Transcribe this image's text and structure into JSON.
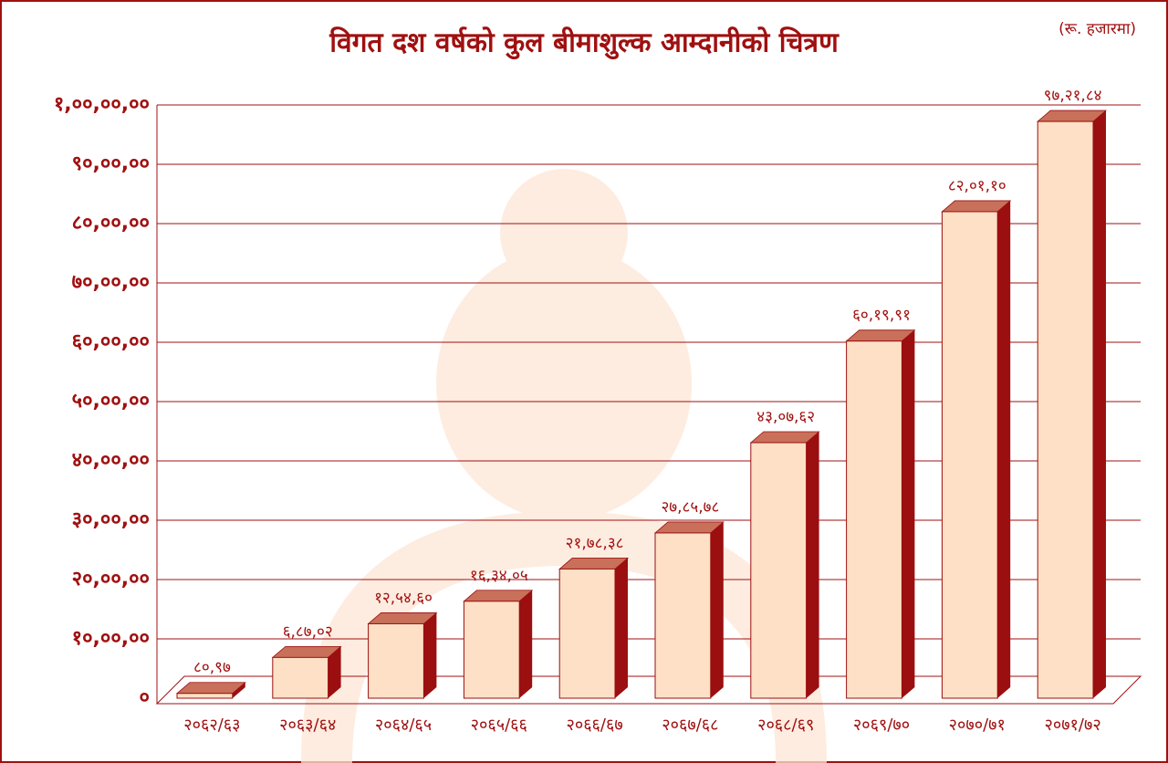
{
  "chart_data": {
    "type": "bar3d",
    "title": "विगत दश वर्षको कुल बीमाशुल्क आम्दानीको चित्रण",
    "subtitle": "(रू. हजारमा)",
    "categories": [
      "२०६२/६३",
      "२०६३/६४",
      "२०६४/६५",
      "२०६५/६६",
      "२०६६/६७",
      "२०६७/६८",
      "२०६८/६९",
      "२०६९/७०",
      "२०७०/७१",
      "२०७१/७२"
    ],
    "values": [
      8097,
      68702,
      125460,
      163405,
      217838,
      278578,
      430762,
      601991,
      820110,
      972184
    ],
    "value_labels": [
      "८०,९७",
      "६,८७,०२",
      "१२,५४,६०",
      "१६,३४,०५",
      "२१,७८,३८",
      "२७,८५,७८",
      "४३,०७,६२",
      "६०,१९,९१",
      "८२,०१,१०",
      "९७,२१,८४"
    ],
    "color": "#fde0c6",
    "ylim": [
      0,
      1000000
    ],
    "yticks": [
      {
        "value": 0,
        "label": "०"
      },
      {
        "value": 100000,
        "label": "१०,००,००"
      },
      {
        "value": 200000,
        "label": "२०,००,००"
      },
      {
        "value": 300000,
        "label": "३०,००,००"
      },
      {
        "value": 400000,
        "label": "४०,००,००"
      },
      {
        "value": 500000,
        "label": "५०,००,००"
      },
      {
        "value": 600000,
        "label": "६०,००,००"
      },
      {
        "value": 700000,
        "label": "७०,००,००"
      },
      {
        "value": 800000,
        "label": "८०,००,००"
      },
      {
        "value": 900000,
        "label": "९०,००,००"
      },
      {
        "value": 1000000,
        "label": "१,००,००,००"
      }
    ],
    "grid": true
  }
}
